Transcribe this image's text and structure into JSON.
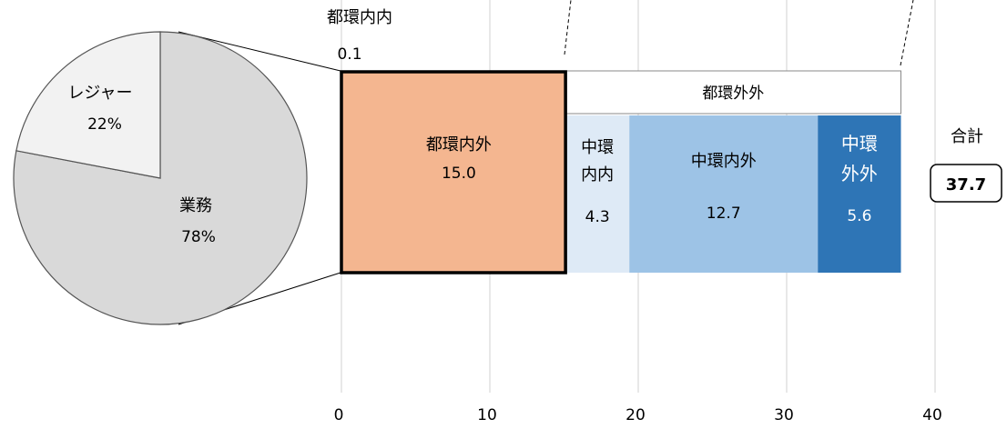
{
  "chart_data": {
    "type": "bar",
    "xlim": [
      0,
      40
    ],
    "x_ticks": [
      0,
      10,
      20,
      30,
      40
    ],
    "grid": true,
    "segments": [
      {
        "name": "都環内内",
        "value": 0.1,
        "color": "#f26b48"
      },
      {
        "name": "都環内外",
        "value": 15.0,
        "color": "#f4b690"
      },
      {
        "name": "中環内内",
        "value": 4.3,
        "color": "#deeaf6"
      },
      {
        "name": "中環内外",
        "value": 12.7,
        "color": "#9dc3e6"
      },
      {
        "name": "中環外外",
        "value": 5.6,
        "color": "#2e75b6"
      }
    ],
    "outer_group_label": "都環外外",
    "total": {
      "label": "合計",
      "value": "37.7"
    },
    "pie": {
      "slices": [
        {
          "name": "業務",
          "percent": 78,
          "label": "78%",
          "color": "#d9d9d9"
        },
        {
          "name": "レジャー",
          "percent": 22,
          "label": "22%",
          "color": "#f2f2f2"
        }
      ]
    }
  }
}
